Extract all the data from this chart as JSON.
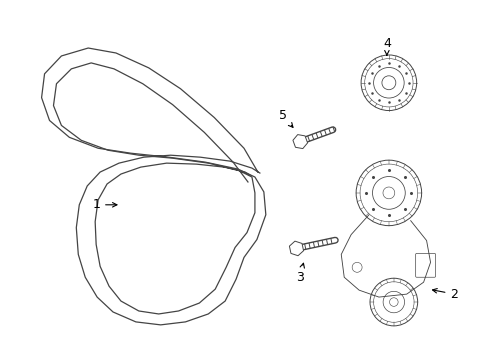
{
  "background_color": "#ffffff",
  "line_color": "#444444",
  "label_color": "#000000",
  "n_belt_ribs": 5,
  "belt_lw": 0.9,
  "part_lw": 0.7
}
